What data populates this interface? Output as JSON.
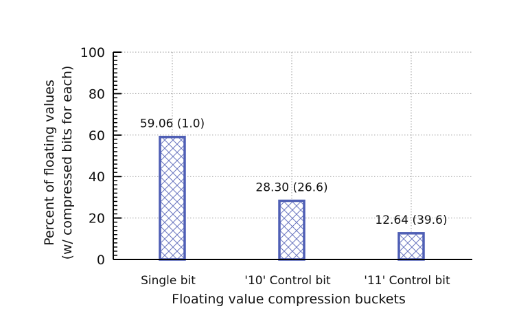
{
  "chart_data": {
    "type": "bar",
    "title": "",
    "xlabel": "Floating value compression buckets",
    "ylabel_line1": "Percent of floating values",
    "ylabel_line2": "(w/ compressed bits for each)",
    "categories": [
      "Single bit",
      "'10' Control bit",
      "'11' Control bit"
    ],
    "values": [
      59.06,
      28.3,
      12.64
    ],
    "bar_labels": [
      "59.06 (1.0)",
      "28.30 (26.6)",
      "12.64 (39.6)"
    ],
    "secondary_values": [
      1.0,
      26.6,
      39.6
    ],
    "ylim": [
      0,
      100
    ],
    "yticks": [
      0,
      20,
      40,
      60,
      80,
      100
    ],
    "grid": true,
    "legend": null
  },
  "colors": {
    "bar_stroke": "#4f5fb5",
    "bar_hatch": "#6a76c0",
    "bar_fill": "#ffffff",
    "axis": "#000000",
    "grid": "#999999"
  }
}
